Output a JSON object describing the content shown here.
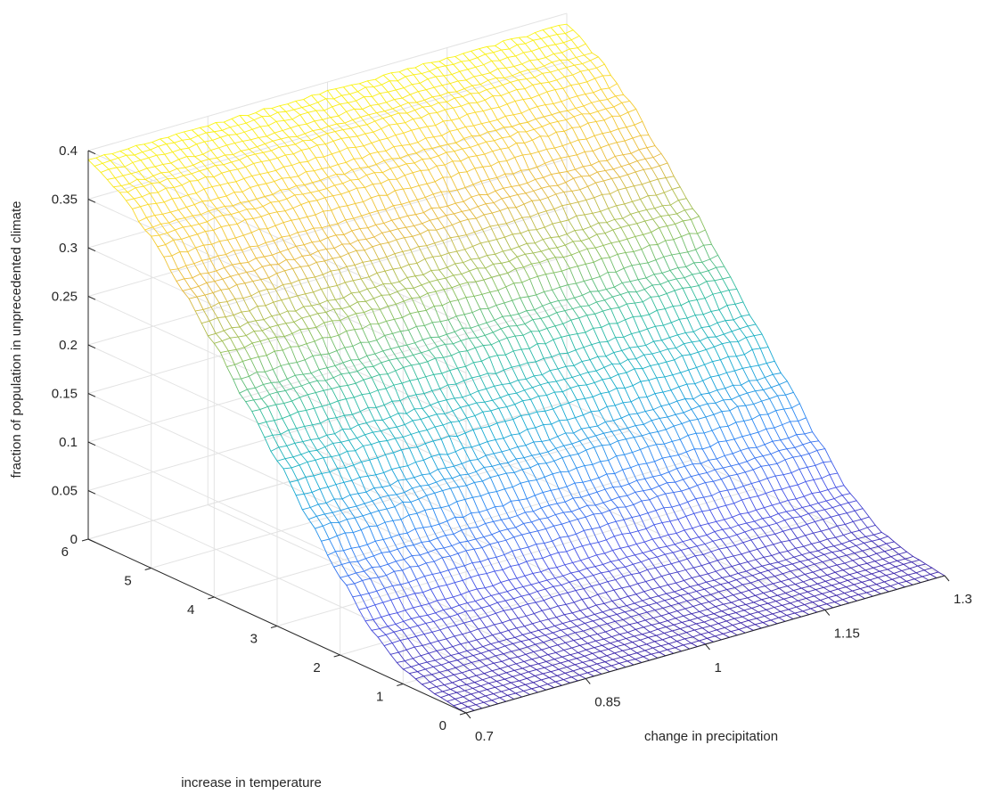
{
  "chart_data": {
    "type": "surface",
    "title": "",
    "xlabel": "change in precipitation",
    "ylabel": "increase in temperature",
    "zlabel": "fraction of population in unprecedented climate",
    "xlim": [
      0.7,
      1.3
    ],
    "ylim": [
      0,
      6
    ],
    "zlim": [
      0,
      0.4
    ],
    "x_ticks": [
      "0.7",
      "0.85",
      "1",
      "1.15",
      "1.3"
    ],
    "y_ticks": [
      "0",
      "1",
      "2",
      "3",
      "4",
      "5",
      "6"
    ],
    "z_ticks": [
      "0",
      "0.05",
      "0.1",
      "0.15",
      "0.2",
      "0.25",
      "0.3",
      "0.35",
      "0.4"
    ],
    "grid": true,
    "colormap": "parula",
    "colormap_stops": [
      "#3e26a8",
      "#4653e7",
      "#2b86f4",
      "#16acd1",
      "#2ebc9f",
      "#8cbf5a",
      "#e7b93e",
      "#f9d22e",
      "#f9fb0e"
    ],
    "surface_profile": {
      "temperature": [
        0,
        0.5,
        1,
        1.5,
        2,
        2.5,
        3,
        3.5,
        4,
        4.5,
        5,
        5.5,
        6
      ],
      "fraction": [
        0,
        0.005,
        0.015,
        0.04,
        0.08,
        0.125,
        0.17,
        0.215,
        0.26,
        0.3,
        0.34,
        0.37,
        0.39
      ],
      "precipitation_effect": "nearly constant across precipitation"
    }
  }
}
